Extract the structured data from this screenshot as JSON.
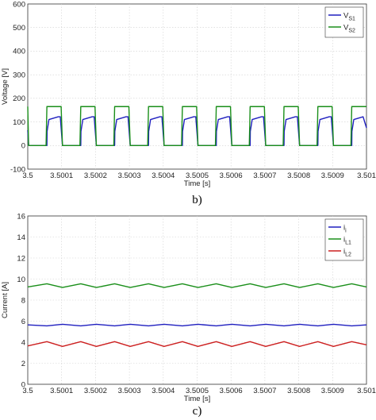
{
  "chart_data": [
    {
      "type": "line",
      "caption": "b)",
      "xlabel": "Time [s]",
      "ylabel": "Voltage [V]",
      "xlim": [
        3.5,
        3.501
      ],
      "ylim": [
        -100,
        600
      ],
      "grid": true,
      "legend_position": "top-right",
      "xticks": [
        3.5,
        3.5001,
        3.5002,
        3.5003,
        3.5004,
        3.5005,
        3.5006,
        3.5007,
        3.5008,
        3.5009,
        3.501
      ],
      "xtick_labels": [
        "3.5",
        "3.5001",
        "3.5002",
        "3.5003",
        "3.5004",
        "3.5005",
        "3.5006",
        "3.5007",
        "3.5008",
        "3.5009",
        "3.501"
      ],
      "yticks": [
        -100,
        0,
        100,
        200,
        300,
        400,
        500,
        600
      ],
      "ytick_labels": [
        "-100",
        "0",
        "100",
        "200",
        "300",
        "400",
        "500",
        "600"
      ],
      "series": [
        {
          "name": "V",
          "name_sub": "S1",
          "color": "#1f1fbf",
          "x": [
            3.5,
            3.5000025,
            3.500005,
            3.5000565,
            3.500057,
            3.5000625,
            3.50009,
            3.500096,
            3.5001025,
            3.500105,
            3.5001565,
            3.500157,
            3.5001625,
            3.50019,
            3.500196,
            3.5002025,
            3.500205,
            3.5002565,
            3.500257,
            3.5002625,
            3.50029,
            3.500296,
            3.5003025,
            3.500305,
            3.5003565,
            3.500357,
            3.5003625,
            3.50039,
            3.500396,
            3.5004025,
            3.500405,
            3.5004565,
            3.500457,
            3.5004625,
            3.50049,
            3.500496,
            3.5005025,
            3.500505,
            3.5005565,
            3.500557,
            3.5005625,
            3.50059,
            3.500596,
            3.5006025,
            3.500605,
            3.5006565,
            3.500657,
            3.5006625,
            3.50069,
            3.500696,
            3.5007025,
            3.500705,
            3.5007565,
            3.500757,
            3.5007625,
            3.50079,
            3.500796,
            3.5008025,
            3.500805,
            3.5008565,
            3.500857,
            3.5008625,
            3.50089,
            3.500896,
            3.5009025,
            3.500905,
            3.5009565,
            3.500957,
            3.5009625,
            3.50099,
            3.501
          ],
          "y": [
            65,
            0,
            0,
            0,
            60,
            110,
            122,
            122,
            0,
            0,
            0,
            60,
            110,
            122,
            122,
            0,
            0,
            0,
            60,
            110,
            122,
            122,
            0,
            0,
            0,
            60,
            110,
            122,
            122,
            0,
            0,
            0,
            60,
            110,
            122,
            122,
            0,
            0,
            0,
            60,
            110,
            122,
            122,
            0,
            0,
            0,
            60,
            110,
            122,
            122,
            0,
            0,
            0,
            60,
            110,
            122,
            122,
            0,
            0,
            0,
            60,
            110,
            122,
            122,
            0,
            0,
            0,
            60,
            110,
            122,
            75
          ]
        },
        {
          "name": "V",
          "name_sub": "S2",
          "color": "#1a8f1a",
          "x": [
            3.5,
            3.5000025,
            3.500005,
            3.500054,
            3.5000565,
            3.500096,
            3.5000985,
            3.5001025,
            3.500105,
            3.500154,
            3.5001565,
            3.500196,
            3.5001985,
            3.5002025,
            3.500205,
            3.500254,
            3.5002565,
            3.500296,
            3.5002985,
            3.5003025,
            3.500305,
            3.500354,
            3.5003565,
            3.500396,
            3.5003985,
            3.5004025,
            3.500405,
            3.500454,
            3.5004565,
            3.500496,
            3.5004985,
            3.5005025,
            3.500505,
            3.500554,
            3.5005565,
            3.500596,
            3.5005985,
            3.5006025,
            3.500605,
            3.500654,
            3.5006565,
            3.500696,
            3.5006985,
            3.5007025,
            3.500705,
            3.500754,
            3.5007565,
            3.500796,
            3.5007985,
            3.5008025,
            3.500805,
            3.500854,
            3.5008565,
            3.500896,
            3.5008985,
            3.5009025,
            3.500905,
            3.500954,
            3.5009565,
            3.501
          ],
          "y": [
            165,
            0,
            0,
            0,
            165,
            165,
            165,
            0,
            0,
            0,
            165,
            165,
            165,
            0,
            0,
            0,
            165,
            165,
            165,
            0,
            0,
            0,
            165,
            165,
            165,
            0,
            0,
            0,
            165,
            165,
            165,
            0,
            0,
            0,
            165,
            165,
            165,
            0,
            0,
            0,
            165,
            165,
            165,
            0,
            0,
            0,
            165,
            165,
            165,
            0,
            0,
            0,
            165,
            165,
            165,
            0,
            0,
            0,
            165,
            165
          ]
        }
      ]
    },
    {
      "type": "line",
      "caption": "c)",
      "xlabel": "Time [s]",
      "ylabel": "Current [A]",
      "xlim": [
        3.5,
        3.501
      ],
      "ylim": [
        0,
        16
      ],
      "grid": true,
      "legend_position": "top-right",
      "xticks": [
        3.5,
        3.5001,
        3.5002,
        3.5003,
        3.5004,
        3.5005,
        3.5006,
        3.5007,
        3.5008,
        3.5009,
        3.501
      ],
      "xtick_labels": [
        "3.5",
        "3.5001",
        "3.5002",
        "3.5003",
        "3.5004",
        "3.5005",
        "3.5006",
        "3.5007",
        "3.5008",
        "3.5009",
        "3.501"
      ],
      "yticks": [
        0,
        2,
        4,
        6,
        8,
        10,
        12,
        14,
        16
      ],
      "ytick_labels": [
        "0",
        "2",
        "4",
        "6",
        "8",
        "10",
        "12",
        "14",
        "16"
      ],
      "series": [
        {
          "name": "i",
          "name_sub": "i",
          "color": "#1f1fbf",
          "x": [
            3.5,
            3.5000565,
            3.5001025,
            3.5001565,
            3.5002025,
            3.5002565,
            3.5003025,
            3.5003565,
            3.5004025,
            3.5004565,
            3.5005025,
            3.5005565,
            3.5006025,
            3.5006565,
            3.5007025,
            3.5007565,
            3.5008025,
            3.5008565,
            3.5009025,
            3.5009565,
            3.501
          ],
          "y": [
            5.65,
            5.55,
            5.7,
            5.55,
            5.7,
            5.55,
            5.7,
            5.55,
            5.7,
            5.55,
            5.7,
            5.55,
            5.7,
            5.55,
            5.7,
            5.55,
            5.7,
            5.55,
            5.7,
            5.55,
            5.65
          ]
        },
        {
          "name": "i",
          "name_sub": "L1",
          "color": "#1a8f1a",
          "x": [
            3.5,
            3.5000565,
            3.5001025,
            3.5001565,
            3.5002025,
            3.5002565,
            3.5003025,
            3.5003565,
            3.5004025,
            3.5004565,
            3.5005025,
            3.5005565,
            3.5006025,
            3.5006565,
            3.5007025,
            3.5007565,
            3.5008025,
            3.5008565,
            3.5009025,
            3.5009565,
            3.501
          ],
          "y": [
            9.25,
            9.55,
            9.2,
            9.55,
            9.2,
            9.55,
            9.2,
            9.55,
            9.2,
            9.55,
            9.2,
            9.55,
            9.2,
            9.55,
            9.2,
            9.55,
            9.2,
            9.55,
            9.2,
            9.55,
            9.25
          ]
        },
        {
          "name": "i",
          "name_sub": "L2",
          "color": "#cc1f1f",
          "x": [
            3.5,
            3.5000565,
            3.5001025,
            3.5001565,
            3.5002025,
            3.5002565,
            3.5003025,
            3.5003565,
            3.5004025,
            3.5004565,
            3.5005025,
            3.5005565,
            3.5006025,
            3.5006565,
            3.5007025,
            3.5007565,
            3.5008025,
            3.5008565,
            3.5009025,
            3.5009565,
            3.501
          ],
          "y": [
            3.65,
            4.05,
            3.6,
            4.05,
            3.6,
            4.05,
            3.6,
            4.05,
            3.6,
            4.05,
            3.6,
            4.05,
            3.6,
            4.05,
            3.6,
            4.05,
            3.6,
            4.05,
            3.6,
            4.05,
            3.75
          ]
        }
      ]
    }
  ]
}
